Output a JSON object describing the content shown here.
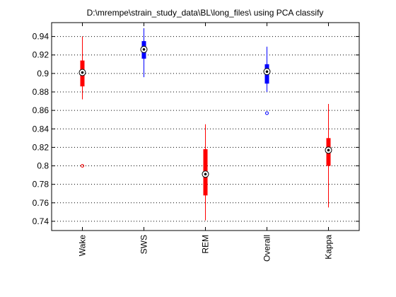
{
  "window": {
    "title": "D:\\mrempe\\strain_study_data\\BL\\long_files\\ using PCA classify"
  },
  "chart_data": {
    "type": "boxplot",
    "title": "D:\\mrempe\\strain_study_data\\BL\\long_files\\ using PCA classify",
    "xlabel": "",
    "ylabel": "",
    "ylim": [
      0.73,
      0.955
    ],
    "yticks": [
      0.74,
      0.76,
      0.78,
      0.8,
      0.82,
      0.84,
      0.86,
      0.88,
      0.9,
      0.92,
      0.94
    ],
    "ytick_labels": [
      "0.74",
      "0.76",
      "0.78",
      "0.8",
      "0.82",
      "0.84",
      "0.86",
      "0.88",
      "0.9",
      "0.92",
      "0.94"
    ],
    "categories": [
      "Wake",
      "SWS",
      "REM",
      "Overall",
      "Kappa"
    ],
    "grid": "horizontal dotted",
    "groups": [
      {
        "label": "Wake",
        "color": "#ff0000",
        "whisker_low": 0.872,
        "q1": 0.886,
        "median": 0.901,
        "q3": 0.914,
        "whisker_high": 0.94,
        "outliers": [
          0.8
        ]
      },
      {
        "label": "SWS",
        "color": "#0000ff",
        "whisker_low": 0.896,
        "q1": 0.916,
        "median": 0.926,
        "q3": 0.935,
        "whisker_high": 0.949,
        "outliers": []
      },
      {
        "label": "REM",
        "color": "#ff0000",
        "whisker_low": 0.741,
        "q1": 0.768,
        "median": 0.791,
        "q3": 0.818,
        "whisker_high": 0.845,
        "outliers": []
      },
      {
        "label": "Overall",
        "color": "#0000ff",
        "whisker_low": 0.88,
        "q1": 0.889,
        "median": 0.902,
        "q3": 0.91,
        "whisker_high": 0.929,
        "outliers": [
          0.857
        ]
      },
      {
        "label": "Kappa",
        "color": "#ff0000",
        "whisker_low": 0.755,
        "q1": 0.8,
        "median": 0.817,
        "q3": 0.83,
        "whisker_high": 0.867,
        "outliers": []
      }
    ]
  }
}
